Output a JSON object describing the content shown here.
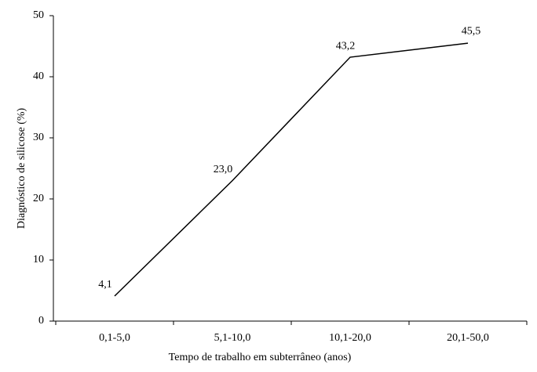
{
  "chart_data": {
    "type": "line",
    "x_label": "Tempo de trabalho em subterrâneo (anos)",
    "y_label": "Diagnóstico de silicose (%)",
    "categories": [
      "0,1-5,0",
      "5,1-10,0",
      "10,1-20,0",
      "20,1-50,0"
    ],
    "values": [
      4.1,
      23.0,
      43.2,
      45.5
    ],
    "value_labels": [
      "4,1",
      "23,0",
      "43,2",
      "45,5"
    ],
    "color": "#000000",
    "ylim": [
      0,
      50
    ],
    "yticks": [
      0,
      10,
      20,
      30,
      40,
      50
    ],
    "grid": false
  }
}
